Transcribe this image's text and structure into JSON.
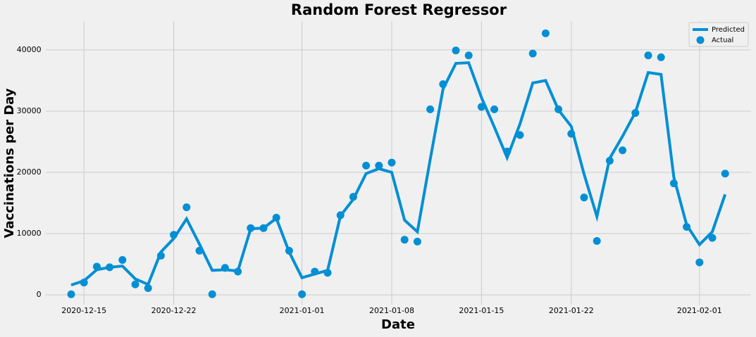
{
  "chart_data": {
    "type": "line",
    "title": "Random Forest Regressor",
    "x_label": "Date",
    "y_label": "Vaccinations per Day",
    "x": [
      "2020-12-14",
      "2020-12-15",
      "2020-12-16",
      "2020-12-17",
      "2020-12-18",
      "2020-12-19",
      "2020-12-20",
      "2020-12-21",
      "2020-12-22",
      "2020-12-23",
      "2020-12-24",
      "2020-12-25",
      "2020-12-26",
      "2020-12-27",
      "2020-12-28",
      "2020-12-29",
      "2020-12-30",
      "2020-12-31",
      "2021-01-01",
      "2021-01-02",
      "2021-01-03",
      "2021-01-04",
      "2021-01-05",
      "2021-01-06",
      "2021-01-07",
      "2021-01-08",
      "2021-01-09",
      "2021-01-10",
      "2021-01-11",
      "2021-01-12",
      "2021-01-13",
      "2021-01-14",
      "2021-01-15",
      "2021-01-16",
      "2021-01-17",
      "2021-01-18",
      "2021-01-19",
      "2021-01-20",
      "2021-01-21",
      "2021-01-22",
      "2021-01-23",
      "2021-01-24",
      "2021-01-25",
      "2021-01-26",
      "2021-01-27",
      "2021-01-28",
      "2021-01-29",
      "2021-01-30",
      "2021-01-31",
      "2021-02-01",
      "2021-02-02",
      "2021-02-03"
    ],
    "series": [
      {
        "name": "Predicted",
        "kind": "line",
        "color": "#008fd5",
        "values": [
          1600,
          2300,
          4100,
          4500,
          4700,
          2600,
          1700,
          7000,
          9200,
          12400,
          8300,
          4000,
          4100,
          3900,
          10800,
          10900,
          12500,
          7000,
          2800,
          3400,
          4000,
          12900,
          15600,
          19800,
          20600,
          20000,
          12200,
          10300,
          22100,
          33600,
          37800,
          37900,
          32200,
          27400,
          22400,
          27900,
          34600,
          35000,
          30200,
          27500,
          19700,
          12800,
          22300,
          25900,
          29800,
          36300,
          36000,
          19200,
          11400,
          8200,
          10300,
          16400
        ]
      },
      {
        "name": "Actual",
        "kind": "scatter",
        "color": "#008fd5",
        "values": [
          100,
          2000,
          4600,
          4500,
          5700,
          1700,
          1100,
          6400,
          9800,
          14300,
          7200,
          100,
          4400,
          3800,
          10900,
          10900,
          12600,
          7200,
          100,
          3800,
          3600,
          13000,
          16000,
          21100,
          21100,
          21600,
          9000,
          8700,
          30300,
          34400,
          39900,
          39100,
          30700,
          30300,
          23400,
          26100,
          39400,
          42700,
          30300,
          26300,
          15900,
          8800,
          21900,
          23600,
          29700,
          39100,
          38800,
          18200,
          11100,
          5300,
          9300,
          19800
        ]
      }
    ],
    "xlim": [
      "2020-12-12",
      "2021-02-05"
    ],
    "xticks": [
      "2020-12-15",
      "2020-12-22",
      "2021-01-01",
      "2021-01-08",
      "2021-01-15",
      "2021-01-22",
      "2021-02-01"
    ],
    "ylim": [
      -1600,
      44700
    ],
    "yticks": [
      0,
      10000,
      20000,
      30000,
      40000
    ],
    "grid": true,
    "legend": "upper right"
  }
}
